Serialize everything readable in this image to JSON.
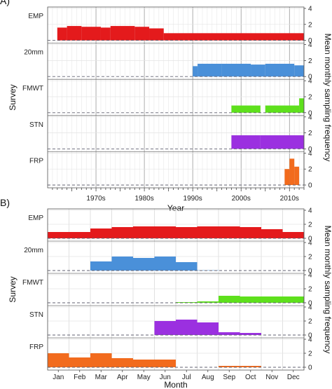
{
  "chart_data": [
    {
      "type": "bar",
      "panel_label": "A)",
      "xlabel": "Year",
      "ylabel": "Survey",
      "right_label": "Mean monthly sampling frequency",
      "x_ticks": [
        "1970s",
        "1980s",
        "1990s",
        "2000s",
        "2010s"
      ],
      "xlim": [
        1965,
        2018
      ],
      "ylim": [
        0,
        4
      ],
      "y_ticks": [
        "0",
        "2",
        "4"
      ],
      "series": [
        {
          "name": "EMP",
          "color": "#e41a1c",
          "bars": [
            {
              "x0": 1967,
              "x1": 1969,
              "value": 1.6
            },
            {
              "x0": 1969,
              "x1": 1972,
              "value": 1.8
            },
            {
              "x0": 1972,
              "x1": 1976,
              "value": 1.7
            },
            {
              "x0": 1976,
              "x1": 1978,
              "value": 1.6
            },
            {
              "x0": 1978,
              "x1": 1983,
              "value": 1.8
            },
            {
              "x0": 1983,
              "x1": 1986,
              "value": 1.7
            },
            {
              "x0": 1986,
              "x1": 1989,
              "value": 1.5
            },
            {
              "x0": 1989,
              "x1": 2018,
              "value": 0.9
            }
          ]
        },
        {
          "name": "20mm",
          "color": "#4a90d9",
          "bars": [
            {
              "x0": 1995,
              "x1": 1996,
              "value": 1.3
            },
            {
              "x0": 1996,
              "x1": 2001,
              "value": 1.6
            },
            {
              "x0": 2001,
              "x1": 2007,
              "value": 1.6
            },
            {
              "x0": 2007,
              "x1": 2010,
              "value": 1.5
            },
            {
              "x0": 2010,
              "x1": 2016,
              "value": 1.6
            },
            {
              "x0": 2016,
              "x1": 2018,
              "value": 1.4
            }
          ]
        },
        {
          "name": "FMWT",
          "color": "#5ee01c",
          "bars": [
            {
              "x0": 2003,
              "x1": 2009,
              "value": 0.9
            },
            {
              "x0": 2010,
              "x1": 2017,
              "value": 0.9
            },
            {
              "x0": 2017,
              "x1": 2018,
              "value": 1.8
            }
          ]
        },
        {
          "name": "STN",
          "color": "#9b30e0",
          "bars": [
            {
              "x0": 2003,
              "x1": 2009,
              "value": 1.7
            },
            {
              "x0": 2009,
              "x1": 2018,
              "value": 1.7
            }
          ]
        },
        {
          "name": "FRP",
          "color": "#f26b1d",
          "bars": [
            {
              "x0": 2014,
              "x1": 2015,
              "value": 2.0
            },
            {
              "x0": 2015,
              "x1": 2016,
              "value": 3.3
            },
            {
              "x0": 2016,
              "x1": 2017,
              "value": 2.3
            }
          ]
        }
      ]
    },
    {
      "type": "bar",
      "panel_label": "B)",
      "xlabel": "Month",
      "ylabel": "Survey",
      "right_label": "Mean monthly sampling frequency",
      "categories": [
        "Jan",
        "Feb",
        "Mar",
        "Apr",
        "May",
        "Jun",
        "Jul",
        "Aug",
        "Sep",
        "Oct",
        "Nov",
        "Dec"
      ],
      "ylim": [
        0,
        4
      ],
      "y_ticks": [
        "0",
        "2",
        "4"
      ],
      "series": [
        {
          "name": "EMP",
          "color": "#e41a1c",
          "values": [
            0.9,
            0.9,
            1.4,
            1.6,
            1.7,
            1.7,
            1.6,
            1.7,
            1.7,
            1.6,
            1.3,
            0.9
          ]
        },
        {
          "name": "20mm",
          "color": "#4a90d9",
          "values": [
            0,
            0,
            1.3,
            2.0,
            1.8,
            2.0,
            1.2,
            0.05,
            0,
            0,
            0,
            0
          ]
        },
        {
          "name": "FMWT",
          "color": "#5ee01c",
          "values": [
            0,
            0,
            0,
            0,
            0,
            0,
            0.1,
            0.2,
            1.0,
            0.9,
            0.9,
            0.9
          ]
        },
        {
          "name": "STN",
          "color": "#9b30e0",
          "values": [
            0,
            0,
            0,
            0,
            0,
            2.0,
            2.2,
            1.8,
            0.4,
            0.3,
            0,
            0
          ]
        },
        {
          "name": "FRP",
          "color": "#f26b1d",
          "values": [
            2.0,
            1.4,
            2.0,
            1.3,
            1.1,
            1.1,
            0,
            0,
            0.2,
            0.2,
            0,
            0
          ]
        }
      ]
    }
  ]
}
